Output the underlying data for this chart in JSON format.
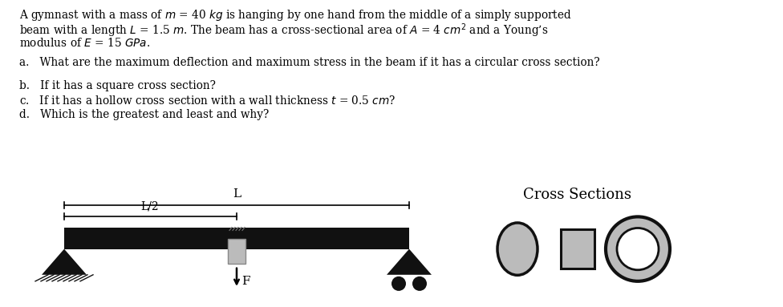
{
  "bg_color": "#ffffff",
  "text_color": "#000000",
  "para1_line1": "A gymnast with a mass of $m$ = 40 $kg$ is hanging by one hand from the middle of a simply supported",
  "para1_line2": "beam with a length $L$ = 1.5 $m$. The beam has a cross-sectional area of $A$ = 4 $cm^2$ and a Young’s",
  "para1_line3": "modulus of $E$ = 15 $GPa$.",
  "qa": "a.   What are the maximum deflection and maximum stress in the beam if it has a circular cross section?",
  "qb": "b.   If it has a square cross section?",
  "qc": "c.   If it has a hollow cross section with a wall thickness $t$ = 0.5 $cm$?",
  "qd": "d.   Which is the greatest and least and why?",
  "cross_sections_title": "Cross Sections",
  "F_label": "F",
  "L_label": "L",
  "L2_label": "L/2"
}
